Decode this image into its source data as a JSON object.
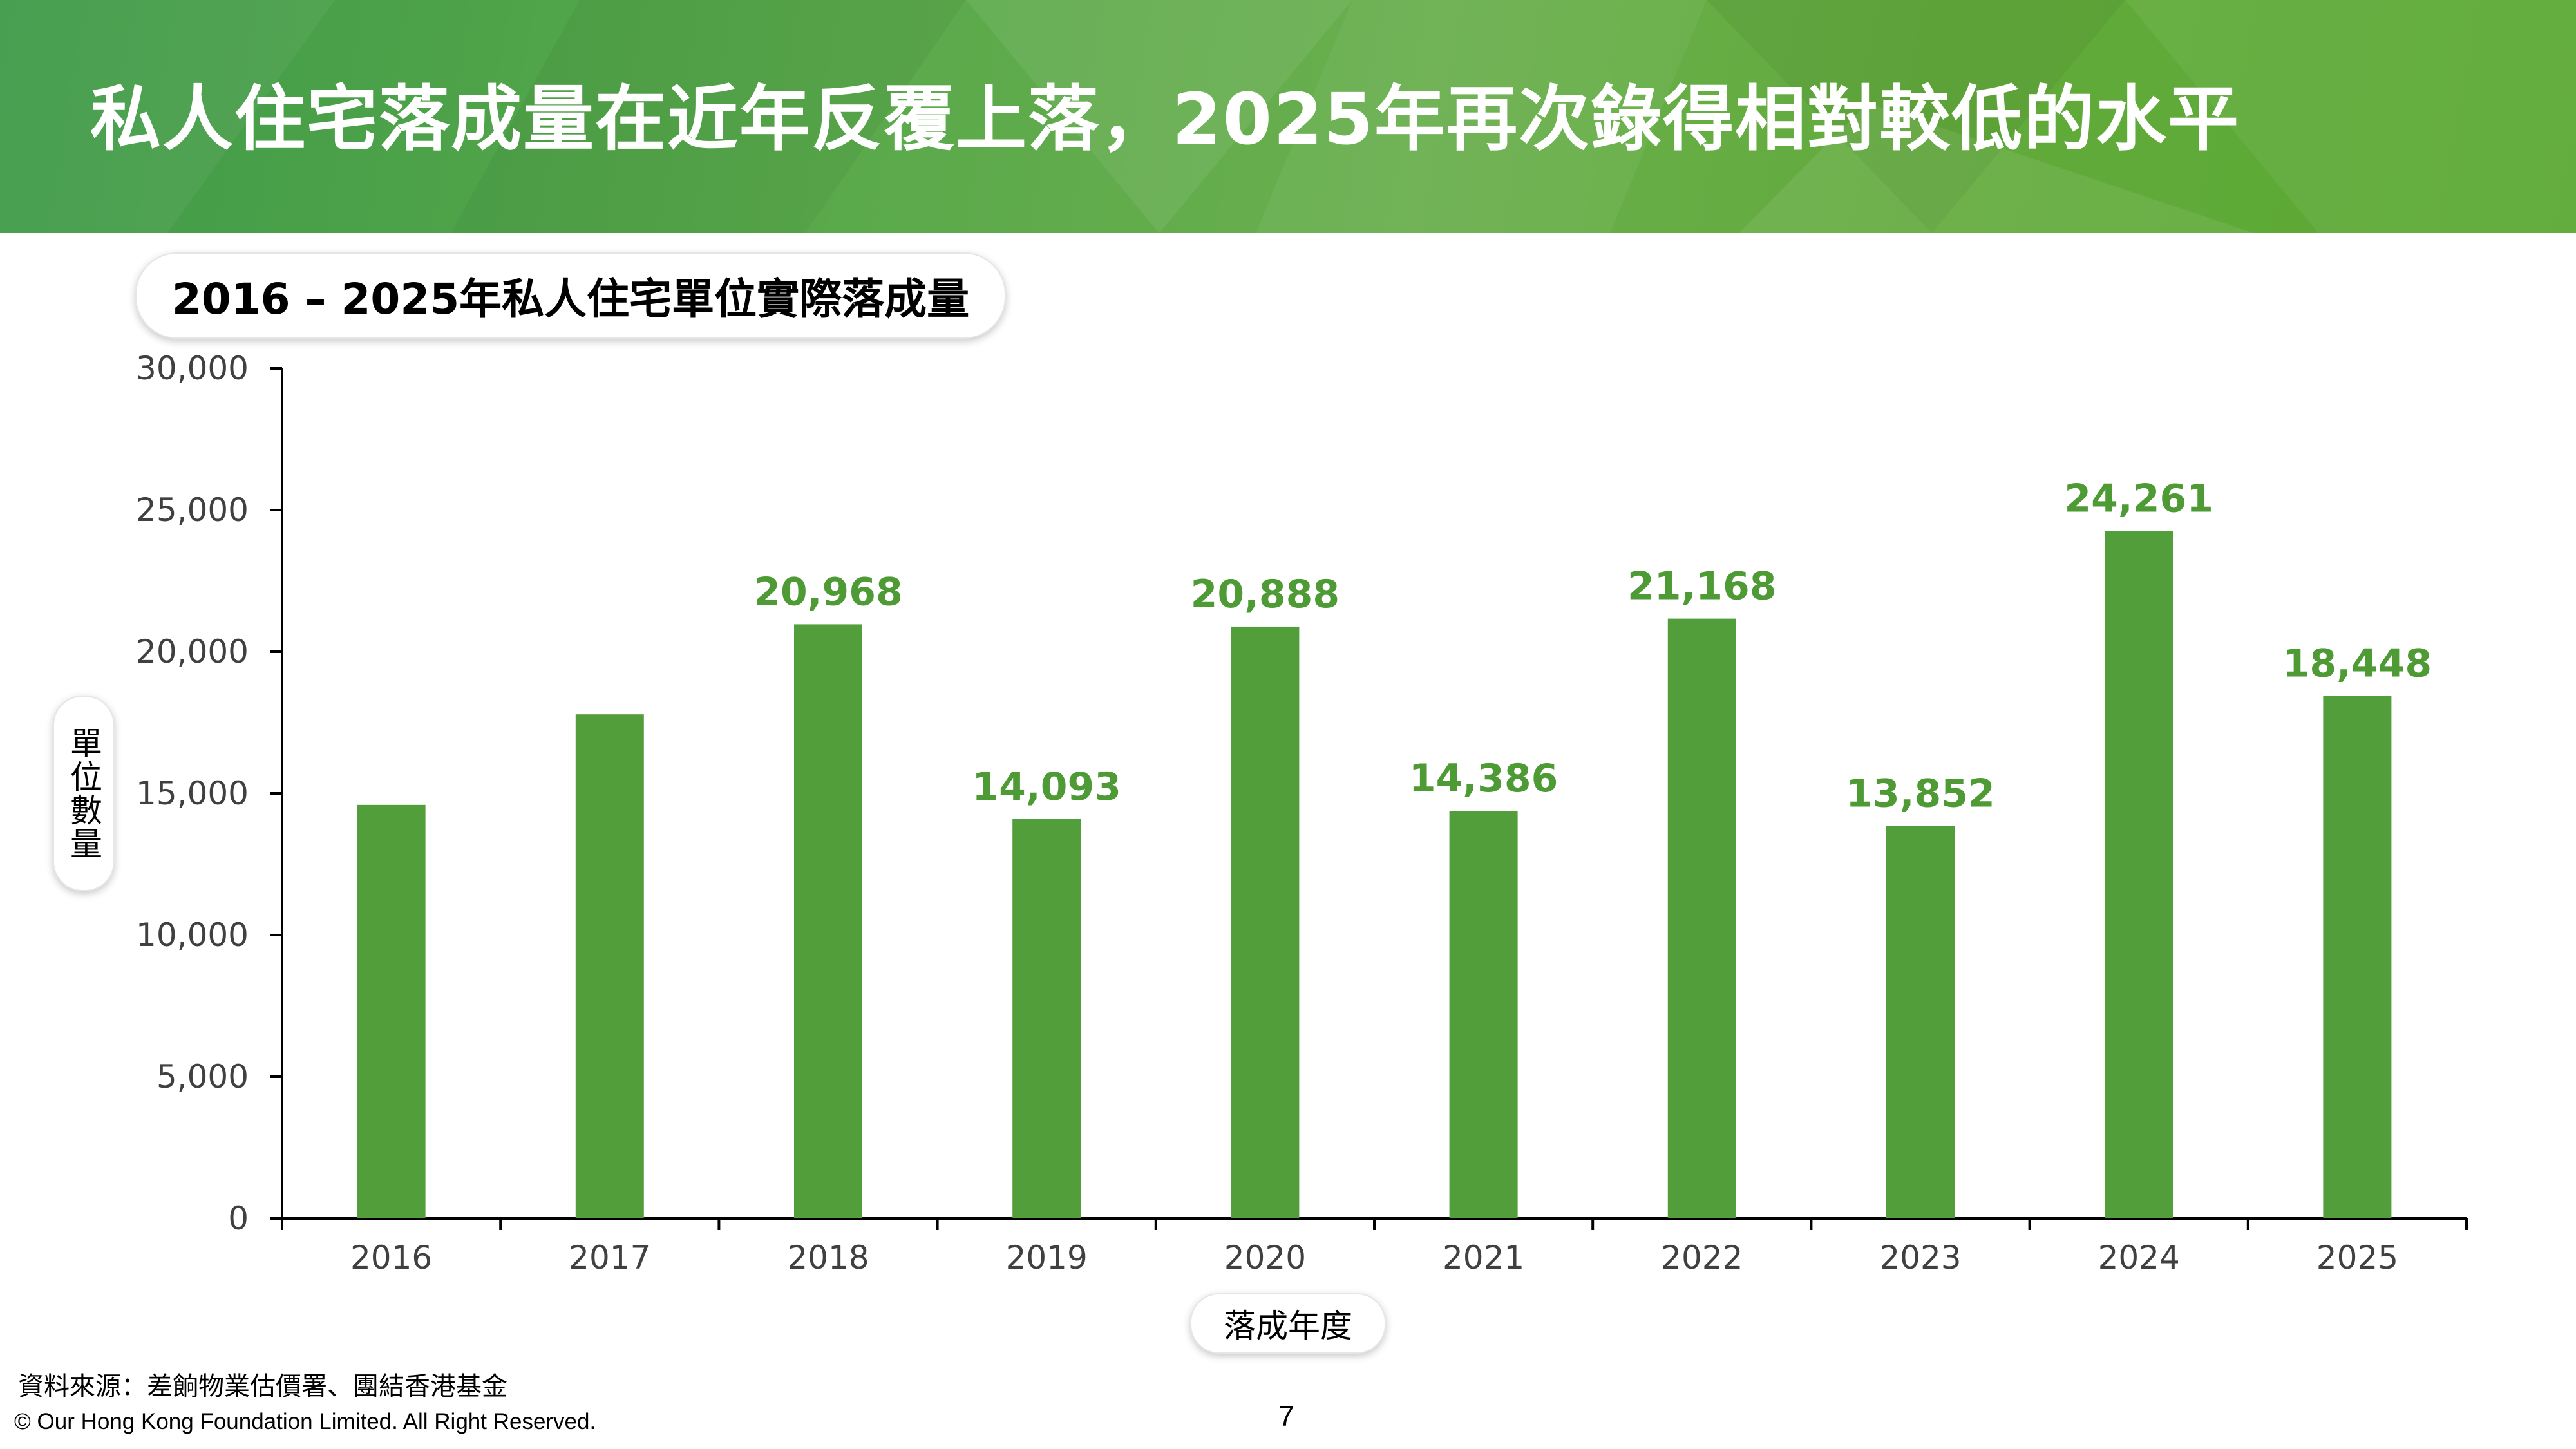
{
  "header": {
    "title": "私人住宅落成量在近年反覆上落，2025年再次錄得相對較低的水平"
  },
  "chart_data": {
    "type": "bar",
    "title": "2016 – 2025年私人住宅單位實際落成量",
    "xlabel": "落成年度",
    "ylabel": "單位數量",
    "categories": [
      "2016",
      "2017",
      "2018",
      "2019",
      "2020",
      "2021",
      "2022",
      "2023",
      "2024",
      "2025"
    ],
    "values": [
      14595,
      17791,
      20968,
      14093,
      20888,
      14386,
      21168,
      13852,
      24261,
      18448
    ],
    "data_labels": [
      "",
      "",
      "20,968",
      "14,093",
      "20,888",
      "14,386",
      "21,168",
      "13,852",
      "24,261",
      "18,448"
    ],
    "ylim": [
      0,
      30000
    ],
    "yticks": [
      0,
      5000,
      10000,
      15000,
      20000,
      25000,
      30000
    ],
    "ytick_labels": [
      "0",
      "5,000",
      "10,000",
      "15,000",
      "20,000",
      "25,000",
      "30,000"
    ],
    "grid": false,
    "bar_color": "#529e3a",
    "label_color": "#4e9a35"
  },
  "footer": {
    "source": "資料來源：差餉物業估價署、團結香港基金",
    "copyright": "© Our Hong Kong Foundation Limited. All Right Reserved.",
    "page_number": "7"
  }
}
